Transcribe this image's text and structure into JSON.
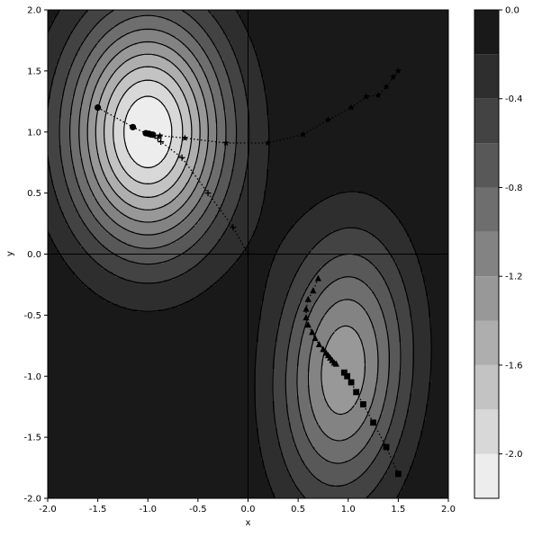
{
  "chart_data": {
    "type": "contour",
    "xlabel": "x",
    "ylabel": "y",
    "xlim": [
      -2.0,
      2.0
    ],
    "ylim": [
      -2.0,
      2.0
    ],
    "x_ticks": [
      "-2.0",
      "-1.5",
      "-1.0",
      "-0.5",
      "0.0",
      "0.5",
      "1.0",
      "1.5",
      "2.0"
    ],
    "y_ticks": [
      "-2.0",
      "-1.5",
      "-1.0",
      "-0.5",
      "0.0",
      "0.5",
      "1.0",
      "1.5",
      "2.0"
    ],
    "surface": {
      "minima": [
        {
          "x": -1.0,
          "y": 1.0,
          "value": -2.2
        },
        {
          "x": 0.95,
          "y": -0.95,
          "value": -1.35
        }
      ],
      "contour_style": "dashed"
    },
    "colorbar": {
      "tick_labels": [
        "0.0",
        "-0.4",
        "-0.8",
        "-1.2",
        "-1.6",
        "-2.0"
      ],
      "levels": [
        0.0,
        -0.2,
        -0.4,
        -0.6,
        -0.8,
        -1.0,
        -1.2,
        -1.4,
        -1.6,
        -1.8,
        -2.0,
        -2.2
      ],
      "range": [
        -2.2,
        0.0
      ]
    },
    "trajectories": [
      {
        "marker": "circle",
        "points": [
          [
            -1.5,
            1.2
          ],
          [
            -1.15,
            1.04
          ],
          [
            -1.02,
            0.99
          ],
          [
            -0.99,
            0.985
          ],
          [
            -0.97,
            0.98
          ],
          [
            -0.95,
            0.978
          ]
        ]
      },
      {
        "marker": "star",
        "points": [
          [
            1.5,
            1.5
          ],
          [
            1.45,
            1.45
          ],
          [
            1.38,
            1.37
          ],
          [
            1.3,
            1.3
          ],
          [
            1.18,
            1.29
          ],
          [
            1.03,
            1.2
          ],
          [
            0.8,
            1.1
          ],
          [
            0.55,
            0.98
          ],
          [
            0.2,
            0.91
          ],
          [
            -0.22,
            0.91
          ],
          [
            -0.63,
            0.95
          ],
          [
            -0.88,
            0.97
          ],
          [
            -0.95,
            0.975
          ]
        ]
      },
      {
        "marker": "plus",
        "points": [
          [
            0.0,
            0.0
          ],
          [
            -0.15,
            0.22
          ],
          [
            -0.4,
            0.5
          ],
          [
            -0.66,
            0.79
          ],
          [
            -0.87,
            0.92
          ],
          [
            -0.9,
            0.95
          ],
          [
            -0.93,
            0.97
          ]
        ]
      },
      {
        "marker": "triangle",
        "points": [
          [
            0.7,
            -0.2
          ],
          [
            0.65,
            -0.3
          ],
          [
            0.6,
            -0.37
          ],
          [
            0.58,
            -0.45
          ],
          [
            0.58,
            -0.52
          ],
          [
            0.6,
            -0.58
          ],
          [
            0.64,
            -0.64
          ],
          [
            0.67,
            -0.69
          ],
          [
            0.71,
            -0.74
          ],
          [
            0.75,
            -0.78
          ],
          [
            0.78,
            -0.81
          ],
          [
            0.8,
            -0.83
          ],
          [
            0.82,
            -0.85
          ],
          [
            0.84,
            -0.87
          ],
          [
            0.86,
            -0.89
          ],
          [
            0.88,
            -0.9
          ]
        ]
      },
      {
        "marker": "square",
        "points": [
          [
            1.5,
            -1.8
          ],
          [
            1.38,
            -1.58
          ],
          [
            1.25,
            -1.38
          ],
          [
            1.15,
            -1.23
          ],
          [
            1.08,
            -1.13
          ],
          [
            1.03,
            -1.05
          ],
          [
            0.99,
            -1.0
          ],
          [
            0.96,
            -0.97
          ]
        ]
      }
    ]
  }
}
